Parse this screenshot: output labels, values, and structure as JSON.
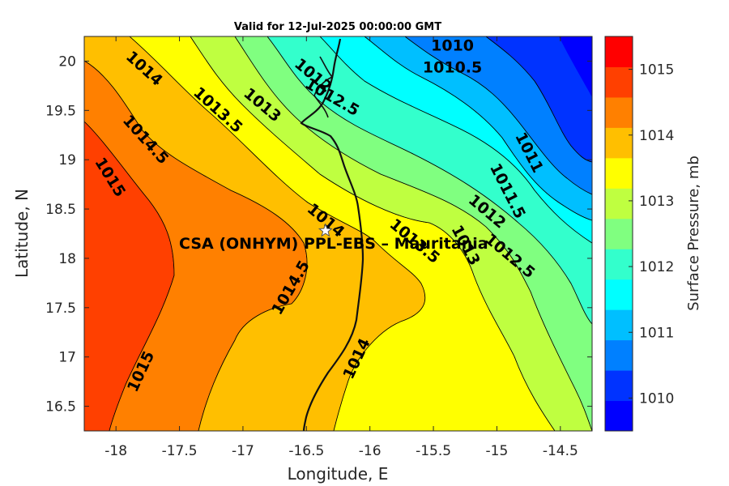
{
  "title": "Valid for 12-Jul-2025 00:00:00 GMT",
  "xlabel": "Longitude, E",
  "ylabel": "Latitude, N",
  "colorbar_label": "Surface Pressure, mb",
  "annotation": "CSA (ONHYM) PPL-EBS  – Mauritania",
  "station_marker": "white-star",
  "map": {
    "lon_range": [
      -18.25,
      -14.25
    ],
    "lat_range": [
      16.25,
      20.25
    ],
    "x_ticks": [
      "-18",
      "-17.5",
      "-17",
      "-16.5",
      "-16",
      "-15.5",
      "-15",
      "-14.5"
    ],
    "y_ticks": [
      "20",
      "19.5",
      "19",
      "18.5",
      "18",
      "17.5",
      "17",
      "16.5"
    ],
    "station": {
      "lon": -16.35,
      "lat": 18.28
    },
    "contour_labels": [
      {
        "text": "1010",
        "lon": -15.35,
        "lat": 20.15,
        "angle": 0
      },
      {
        "text": "1010.5",
        "lon": -15.35,
        "lat": 19.93,
        "angle": 0
      },
      {
        "text": "1011",
        "lon": -14.75,
        "lat": 19.07,
        "angle": 63
      },
      {
        "text": "1011.5",
        "lon": -14.92,
        "lat": 18.68,
        "angle": 63
      },
      {
        "text": "1012",
        "lon": -15.08,
        "lat": 18.47,
        "angle": 40
      },
      {
        "text": "1012.5",
        "lon": -14.9,
        "lat": 18.02,
        "angle": 40
      },
      {
        "text": "1013",
        "lon": -15.25,
        "lat": 18.13,
        "angle": 62
      },
      {
        "text": "1013.5",
        "lon": -15.65,
        "lat": 18.17,
        "angle": 40
      },
      {
        "text": "1012",
        "lon": -16.45,
        "lat": 19.85,
        "angle": 40
      },
      {
        "text": "1012.5",
        "lon": -16.3,
        "lat": 19.63,
        "angle": 30
      },
      {
        "text": "1013",
        "lon": -16.85,
        "lat": 19.55,
        "angle": 40
      },
      {
        "text": "1013.5",
        "lon": -17.2,
        "lat": 19.5,
        "angle": 42
      },
      {
        "text": "1014",
        "lon": -17.78,
        "lat": 19.92,
        "angle": 42
      },
      {
        "text": "1014.5",
        "lon": -17.77,
        "lat": 19.2,
        "angle": 48
      },
      {
        "text": "1015",
        "lon": -18.05,
        "lat": 18.82,
        "angle": 58
      },
      {
        "text": "1014",
        "lon": -16.35,
        "lat": 18.38,
        "angle": 40
      },
      {
        "text": "1014.5",
        "lon": -16.62,
        "lat": 17.7,
        "angle": -60
      },
      {
        "text": "1015",
        "lon": -17.8,
        "lat": 16.85,
        "angle": -65
      },
      {
        "text": "1014",
        "lon": -16.1,
        "lat": 16.98,
        "angle": -65
      }
    ]
  },
  "colorbar": {
    "min": 1009.5,
    "max": 1015.5,
    "ticks": [
      "1010",
      "1011",
      "1012",
      "1013",
      "1014",
      "1015"
    ],
    "colors": [
      "#0000ff",
      "#0033ff",
      "#0080ff",
      "#00bfff",
      "#00ffff",
      "#33ffcc",
      "#80ff80",
      "#bfff40",
      "#ffff00",
      "#ffbf00",
      "#ff8000",
      "#ff4000",
      "#ff0000"
    ]
  }
}
